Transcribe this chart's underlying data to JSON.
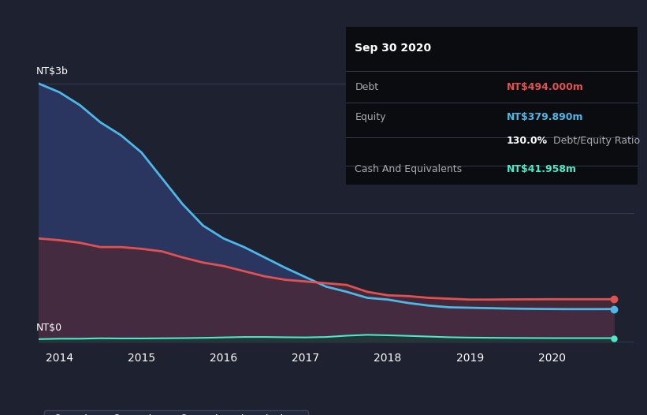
{
  "background_color": "#1e2130",
  "plot_bg_color": "#252a3d",
  "grid_color": "#3a3f5a",
  "years": [
    2013.75,
    2014.0,
    2014.25,
    2014.5,
    2014.75,
    2015.0,
    2015.25,
    2015.5,
    2015.75,
    2016.0,
    2016.25,
    2016.5,
    2016.75,
    2017.0,
    2017.25,
    2017.5,
    2017.75,
    2018.0,
    2018.25,
    2018.5,
    2018.75,
    2019.0,
    2019.25,
    2019.5,
    2019.75,
    2020.0,
    2020.25,
    2020.5,
    2020.75
  ],
  "debt": [
    1200,
    1180,
    1150,
    1100,
    1100,
    1080,
    1050,
    980,
    920,
    880,
    820,
    760,
    720,
    700,
    680,
    660,
    580,
    540,
    530,
    510,
    500,
    490,
    490,
    492,
    493,
    494,
    494,
    494,
    494
  ],
  "equity": [
    3000,
    2900,
    2750,
    2550,
    2400,
    2200,
    1900,
    1600,
    1350,
    1200,
    1100,
    980,
    860,
    750,
    640,
    580,
    510,
    490,
    450,
    420,
    400,
    395,
    390,
    385,
    382,
    380,
    379,
    379,
    380
  ],
  "cash": [
    30,
    35,
    35,
    40,
    38,
    38,
    40,
    42,
    45,
    50,
    55,
    55,
    52,
    50,
    55,
    70,
    80,
    75,
    68,
    60,
    52,
    48,
    46,
    44,
    43,
    42,
    42,
    42,
    42
  ],
  "debt_color": "#e05252",
  "equity_color": "#4db8e8",
  "cash_color": "#4de8c8",
  "fill_equity_color": "#2a3560",
  "fill_debt_color": "#4a2a3a",
  "fill_cash_color": "#1a3a35",
  "ylabel_top": "NT$3b",
  "ylabel_bottom": "NT$0",
  "xlim": [
    2013.75,
    2021.0
  ],
  "ylim": [
    -80,
    3200
  ],
  "xticks": [
    2014,
    2015,
    2016,
    2017,
    2018,
    2019,
    2020
  ],
  "info_title": "Sep 30 2020",
  "info_debt_label": "Debt",
  "info_debt_value": "NT$494.000m",
  "info_equity_label": "Equity",
  "info_equity_value": "NT$379.890m",
  "info_ratio": "130.0%",
  "info_ratio_label": " Debt/Equity Ratio",
  "info_cash_label": "Cash And Equivalents",
  "info_cash_value": "NT$41.958m",
  "legend_debt": "Debt",
  "legend_equity": "Equity",
  "legend_cash": "Cash And Equivalents"
}
